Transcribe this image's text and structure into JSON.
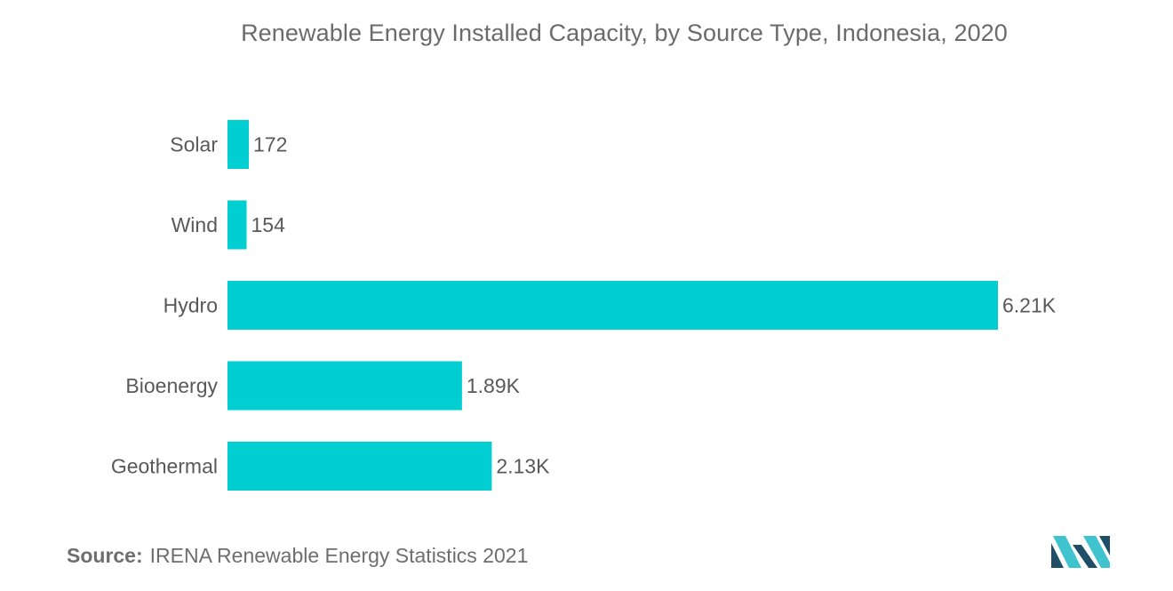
{
  "title": "Renewable Energy Installed Capacity, by Source Type, Indonesia, 2020",
  "source": {
    "label": "Source:",
    "text": "IRENA Renewable Energy Statistics 2021"
  },
  "colors": {
    "bar": "#00ced1",
    "label_text": "#595959",
    "logo_dark": "#1e4f66",
    "logo_light": "#3ec3cf"
  },
  "logo_icon": "mordor-intelligence-logo-icon",
  "chart_data": {
    "type": "bar",
    "orientation": "horizontal",
    "title": "Renewable Energy Installed Capacity, by Source Type, Indonesia, 2020",
    "xlabel": "",
    "ylabel": "",
    "categories": [
      "Solar",
      "Wind",
      "Hydro",
      "Bioenergy",
      "Geothermal"
    ],
    "values": [
      172,
      154,
      6210,
      1890,
      2130
    ],
    "data_labels": [
      "172",
      "154",
      "6.21K",
      "1.89K",
      "2.13K"
    ],
    "xlim": [
      0,
      6210
    ],
    "grid": false,
    "legend": "none"
  }
}
